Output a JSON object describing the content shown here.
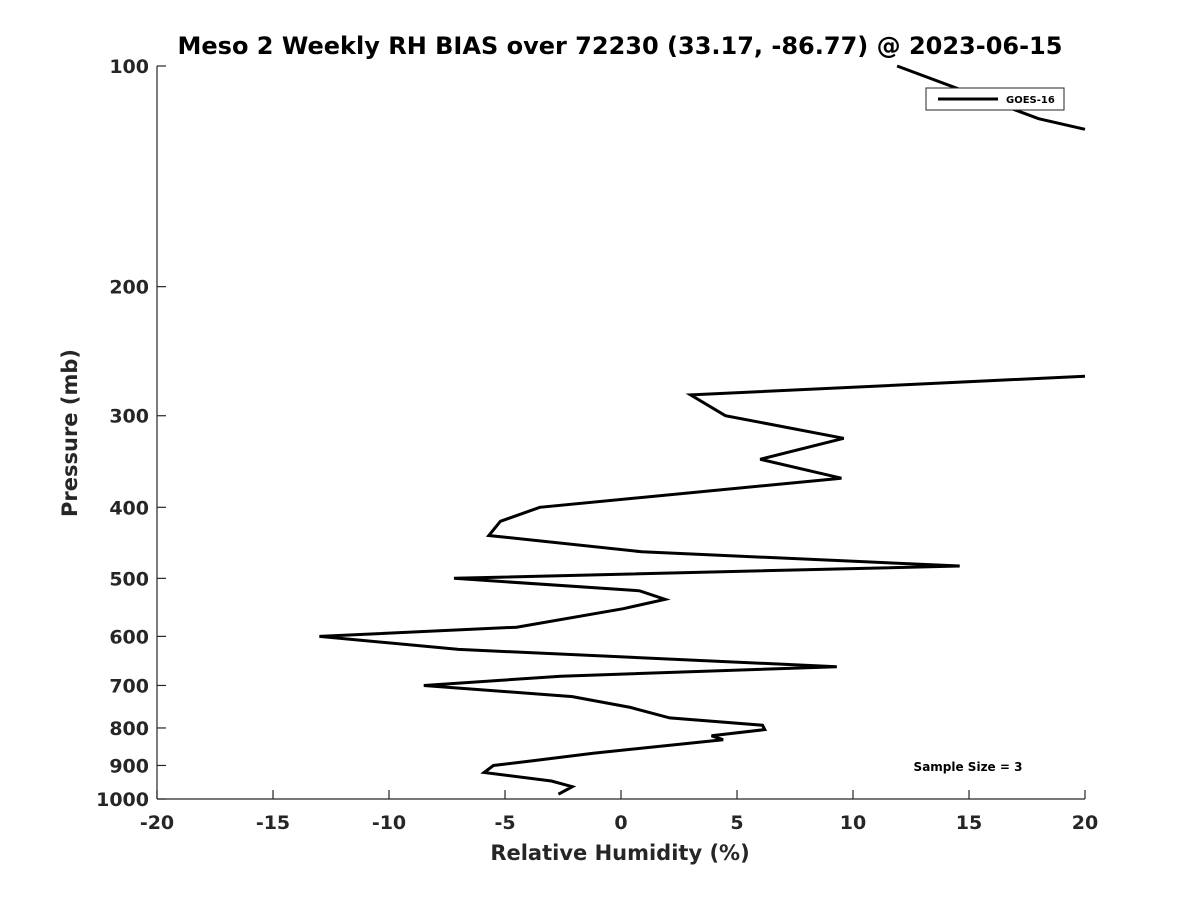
{
  "chart_data": {
    "type": "line",
    "title": "Meso 2 Weekly RH BIAS over 72230 (33.17, -86.77) @ 2023-06-15",
    "xlabel": "Relative Humidity (%)",
    "ylabel": "Pressure (mb)",
    "xlim": [
      -20,
      20
    ],
    "ylim": [
      100,
      1000
    ],
    "y_scale": "log",
    "y_reversed": true,
    "x_ticks": [
      -20,
      -15,
      -10,
      -5,
      0,
      5,
      10,
      15,
      20
    ],
    "x_tick_labels": [
      "-20",
      "-15",
      "-10",
      "-5",
      "0",
      "5",
      "10",
      "15",
      "20"
    ],
    "y_ticks": [
      100,
      200,
      300,
      400,
      500,
      600,
      700,
      800,
      900,
      1000
    ],
    "y_tick_labels": [
      "100",
      "200",
      "300",
      "400",
      "500",
      "600",
      "700",
      "800",
      "900",
      "1000"
    ],
    "grid": false,
    "legend_position": "top-right",
    "annotation": "Sample Size = 3",
    "colors": {
      "series": "#000000",
      "axes": "#262626"
    },
    "series": [
      {
        "name": "GOES-16",
        "points": [
          [
            11.9,
            100
          ],
          [
            18.0,
            118
          ],
          [
            20.0,
            122
          ]
        ]
      },
      {
        "name": "",
        "points": [
          [
            20.0,
            265
          ],
          [
            3.0,
            281
          ],
          [
            4.5,
            300
          ],
          [
            9.6,
            322
          ],
          [
            6.0,
            344
          ],
          [
            9.5,
            365
          ],
          [
            -3.5,
            400
          ],
          [
            -5.2,
            418
          ],
          [
            -5.7,
            437
          ],
          [
            0.9,
            460
          ],
          [
            14.6,
            481
          ],
          [
            -7.2,
            500
          ],
          [
            0.8,
            520
          ],
          [
            1.9,
            534
          ],
          [
            0.1,
            550
          ],
          [
            -4.5,
            583
          ],
          [
            -13.0,
            600
          ],
          [
            -7.0,
            625
          ],
          [
            9.3,
            660
          ],
          [
            -2.6,
            680
          ],
          [
            -8.5,
            700
          ],
          [
            -2.1,
            725
          ],
          [
            0.4,
            750
          ],
          [
            2.1,
            775
          ],
          [
            6.1,
            793
          ],
          [
            6.2,
            804
          ],
          [
            3.9,
            820
          ],
          [
            4.4,
            830
          ],
          [
            -1.2,
            866
          ],
          [
            -3.8,
            887
          ],
          [
            -5.5,
            900
          ],
          [
            -5.9,
            920
          ],
          [
            -3.0,
            945
          ],
          [
            -2.1,
            962
          ],
          [
            -2.7,
            985
          ]
        ]
      }
    ]
  }
}
